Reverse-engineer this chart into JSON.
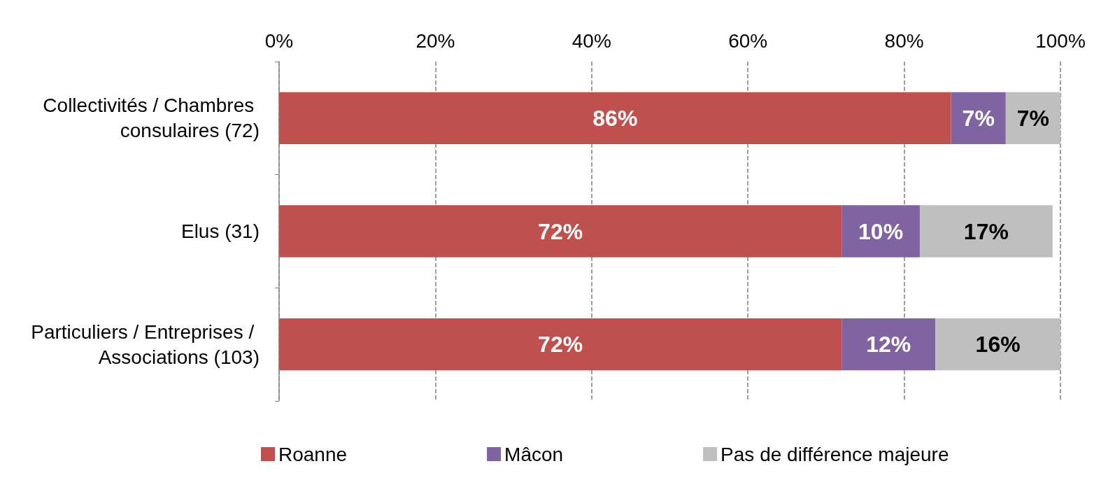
{
  "chart_data": {
    "type": "bar",
    "orientation": "horizontal",
    "stacked": true,
    "categories": [
      "Collectivités / Chambres consulaires (72)",
      "Elus (31)",
      "Particuliers / Entreprises / Associations (103)"
    ],
    "series": [
      {
        "name": "Roanne",
        "color": "#c0504d",
        "values": [
          86,
          72,
          72
        ],
        "value_labels": [
          "86%",
          "72%",
          "72%"
        ]
      },
      {
        "name": "Mâcon",
        "color": "#8064a2",
        "values": [
          7,
          10,
          12
        ],
        "value_labels": [
          "7%",
          "10%",
          "12%"
        ]
      },
      {
        "name": "Pas de différence majeure",
        "color": "#bfbfbf",
        "values": [
          7,
          17,
          16
        ],
        "value_labels": [
          "7%",
          "17%",
          "16%"
        ]
      }
    ],
    "xlim": [
      0,
      100
    ],
    "xticks": [
      {
        "value": 0,
        "label": "0%"
      },
      {
        "value": 20,
        "label": "20%"
      },
      {
        "value": 40,
        "label": "40%"
      },
      {
        "value": 60,
        "label": "60%"
      },
      {
        "value": 80,
        "label": "80%"
      },
      {
        "value": 100,
        "label": "100%"
      }
    ],
    "grid": "x",
    "legend": "bottom"
  }
}
